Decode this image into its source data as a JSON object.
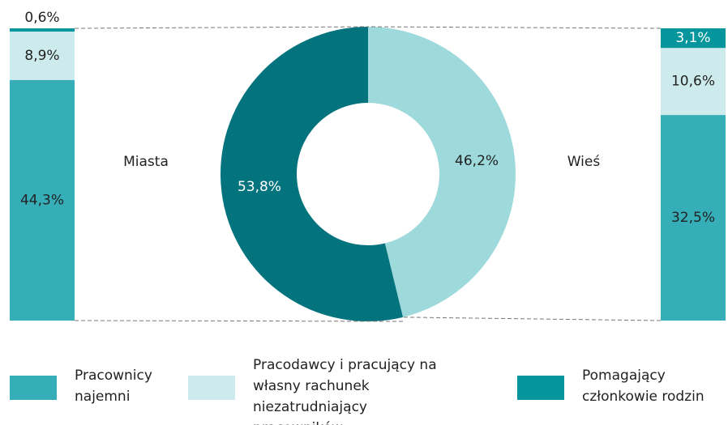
{
  "chart_data": {
    "type": "donut",
    "categories": [
      "Miasta",
      "Wieś"
    ],
    "values": [
      53.8,
      46.2
    ],
    "value_labels": [
      "53,8%",
      "46,2%"
    ],
    "colors": [
      "#03737d",
      "#9ed9dc"
    ],
    "series": [
      {
        "name": "Pracownicy najemni",
        "color": "#35aeb8",
        "values": [
          44.3,
          32.5
        ],
        "value_labels": [
          "44,3%",
          "32,5%"
        ]
      },
      {
        "name": "Pracodawcy i pracujący na własny rachunek niezatrudniający pracowników",
        "color": "#cdebec",
        "values": [
          8.9,
          10.6
        ],
        "value_labels": [
          "8,9%",
          "10,6%"
        ]
      },
      {
        "name": "Pomagający członkowie rodzin",
        "color": "#04969c",
        "values": [
          0.6,
          3.1
        ],
        "value_labels": [
          "0,6%",
          "3,1%"
        ]
      }
    ]
  }
}
